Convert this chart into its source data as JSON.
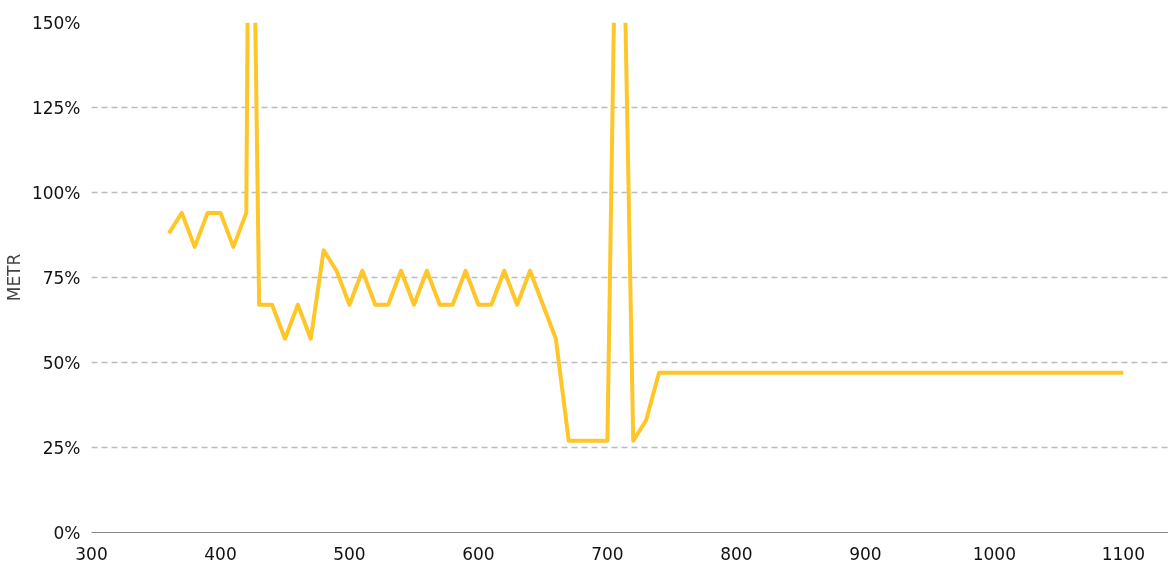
{
  "chart_data": {
    "type": "line",
    "ylabel": "METR",
    "x": [
      360,
      370,
      380,
      390,
      400,
      410,
      420,
      421,
      424,
      427,
      430,
      440,
      450,
      460,
      470,
      480,
      490,
      500,
      510,
      520,
      530,
      540,
      550,
      560,
      570,
      580,
      590,
      600,
      610,
      620,
      630,
      640,
      650,
      660,
      670,
      680,
      690,
      700,
      705,
      710,
      714,
      720,
      730,
      740,
      1100
    ],
    "series": [
      {
        "color": "#ffc629",
        "values": [
          88,
          94,
          84,
          94,
          94,
          84,
          94,
          150,
          null,
          150,
          67,
          67,
          57,
          67,
          57,
          83,
          77,
          67,
          77,
          67,
          67,
          77,
          67,
          77,
          67,
          67,
          77,
          67,
          67,
          77,
          67,
          77,
          67,
          57,
          27,
          27,
          27,
          27,
          150,
          null,
          150,
          27,
          33,
          47,
          47
        ]
      }
    ],
    "xlim": [
      300,
      1135
    ],
    "xticks": [
      300,
      400,
      500,
      600,
      700,
      800,
      900,
      1000,
      1100
    ],
    "ylim": [
      0,
      150
    ],
    "yticks": [
      {
        "value": 0,
        "label": "0%"
      },
      {
        "value": 25,
        "label": "25%"
      },
      {
        "value": 50,
        "label": "50%"
      },
      {
        "value": 75,
        "label": "75%"
      },
      {
        "value": 100,
        "label": "100%"
      },
      {
        "value": 125,
        "label": "125%"
      },
      {
        "value": 150,
        "label": "150%"
      }
    ],
    "grid": "y",
    "marker": "none",
    "line_style": "solid"
  }
}
